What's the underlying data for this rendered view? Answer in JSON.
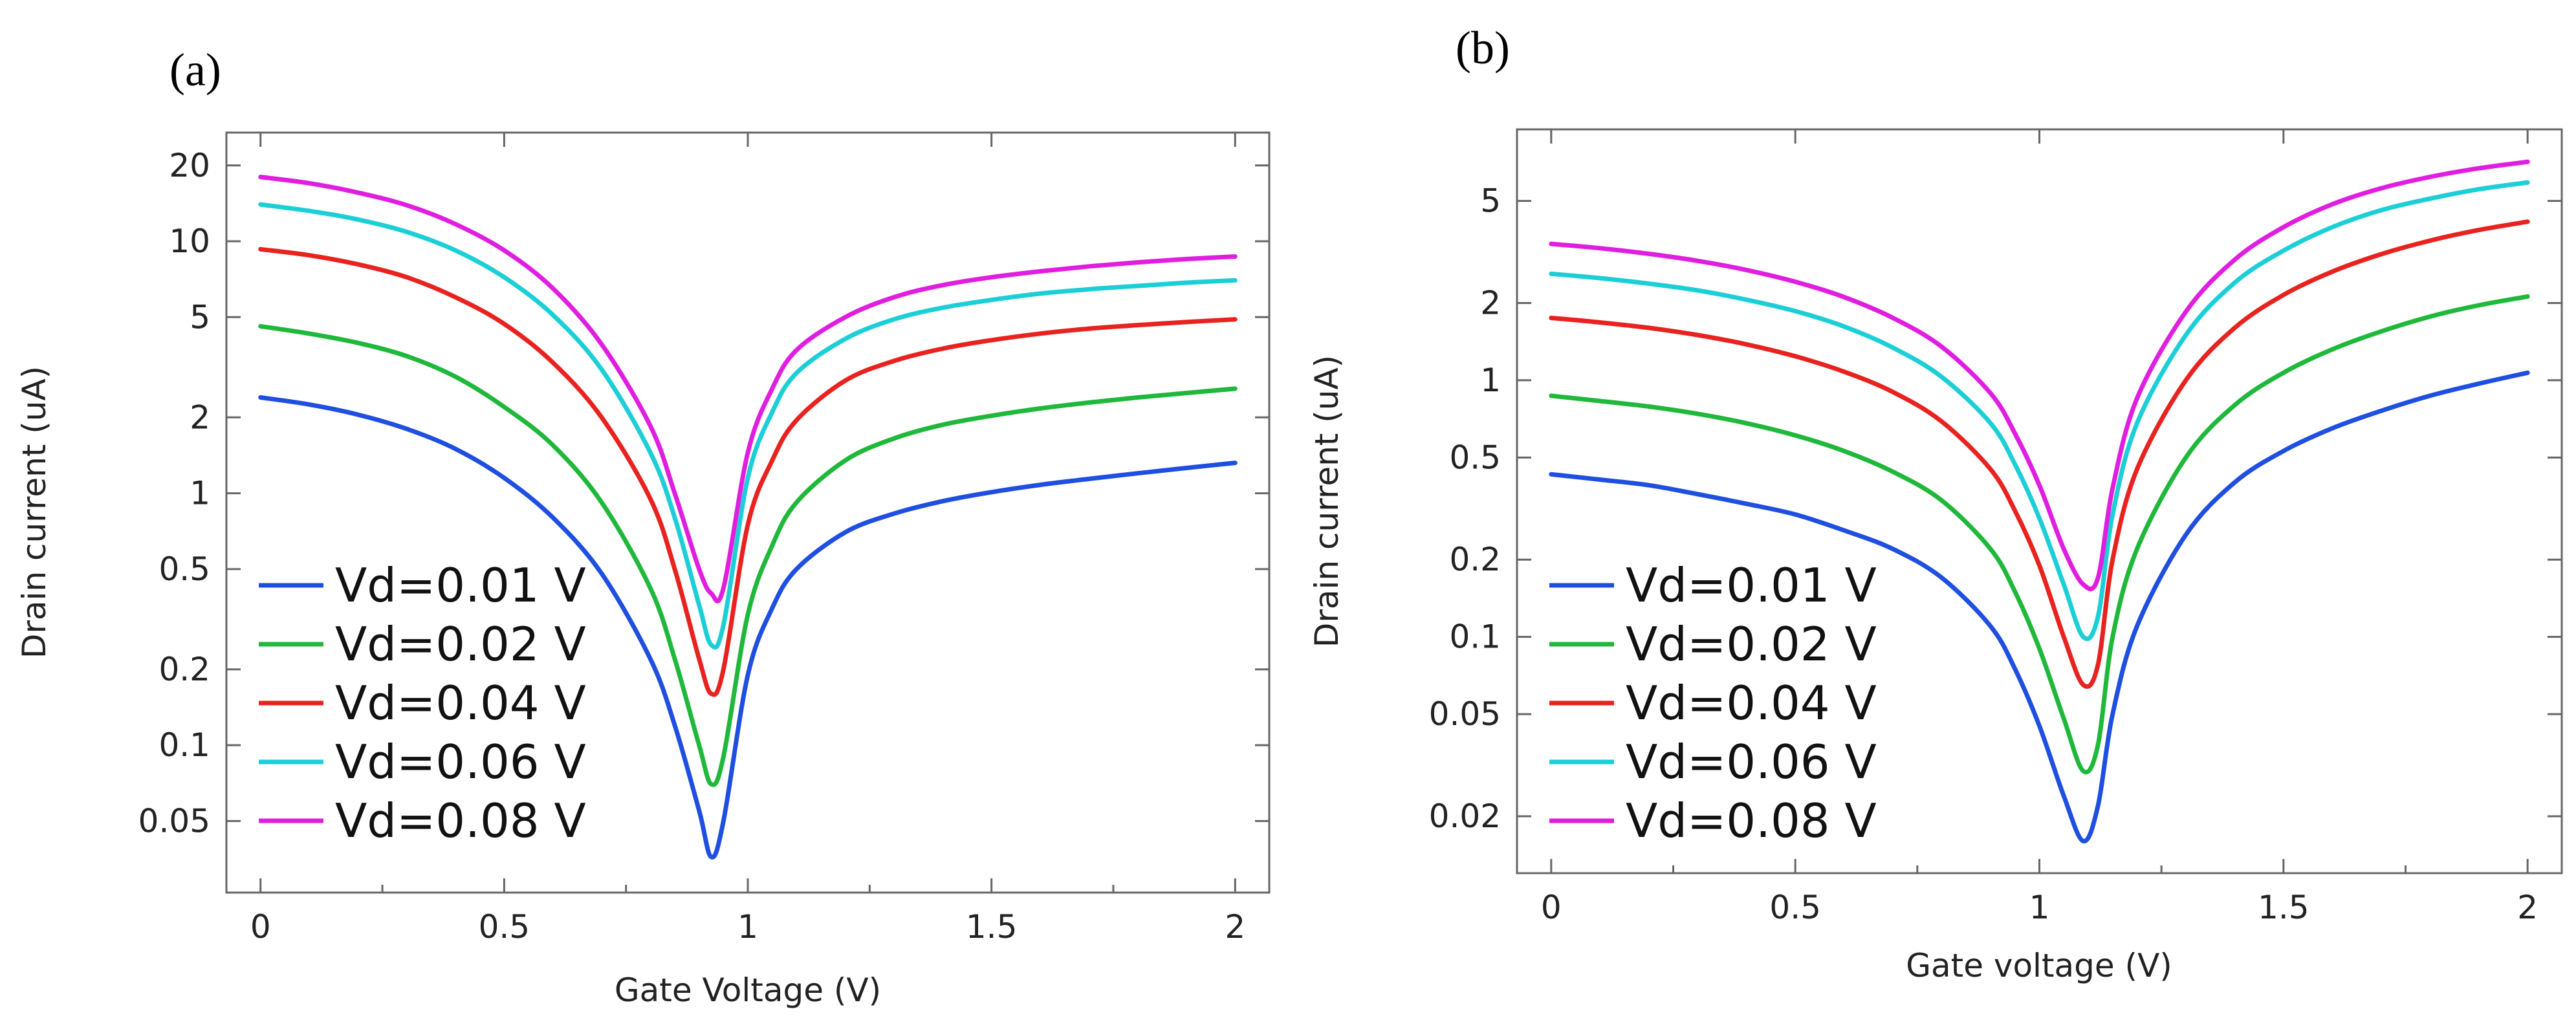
{
  "colors": {
    "Vd=0.01 V": "#1f4fe0",
    "Vd=0.02 V": "#1fb83a",
    "Vd=0.04 V": "#e8231f",
    "Vd=0.06 V": "#1ccfd6",
    "Vd=0.08 V": "#e01ee0"
  },
  "chart_data": [
    {
      "type": "line",
      "panel_label": "(a)",
      "title": "",
      "xlabel": "Gate Voltage (V)",
      "ylabel": "Drain current (uA)",
      "yscale": "log",
      "xlim": [
        -0.07,
        2.07
      ],
      "ylim": [
        0.026,
        27
      ],
      "xticks": [
        0,
        0.5,
        1,
        1.5,
        2
      ],
      "xtick_labels": [
        "0",
        "0.5",
        "1",
        "1.5",
        "2"
      ],
      "yticks": [
        0.05,
        0.1,
        0.2,
        0.5,
        1,
        2,
        5,
        10,
        20
      ],
      "ytick_labels": [
        "0.05",
        "0.1",
        "0.2",
        "0.5",
        "1",
        "2",
        "5",
        "10",
        "20"
      ],
      "grid": false,
      "legend": "bottom-left",
      "x": [
        0,
        0.1,
        0.2,
        0.3,
        0.4,
        0.5,
        0.6,
        0.7,
        0.8,
        0.85,
        0.9,
        0.925,
        0.95,
        1.0,
        1.05,
        1.1,
        1.2,
        1.3,
        1.4,
        1.5,
        1.6,
        1.7,
        1.8,
        1.9,
        2.0
      ],
      "series": [
        {
          "name": "Vd=0.01 V",
          "values": [
            2.4,
            2.25,
            2.05,
            1.8,
            1.5,
            1.15,
            0.8,
            0.48,
            0.22,
            0.12,
            0.055,
            0.036,
            0.05,
            0.19,
            0.35,
            0.5,
            0.7,
            0.83,
            0.93,
            1.01,
            1.08,
            1.14,
            1.2,
            1.26,
            1.32
          ]
        },
        {
          "name": "Vd=0.02 V",
          "values": [
            4.6,
            4.3,
            3.95,
            3.5,
            2.9,
            2.2,
            1.55,
            0.92,
            0.42,
            0.22,
            0.1,
            0.07,
            0.09,
            0.33,
            0.62,
            0.92,
            1.35,
            1.65,
            1.87,
            2.03,
            2.17,
            2.29,
            2.4,
            2.5,
            2.6
          ]
        },
        {
          "name": "Vd=0.04 V",
          "values": [
            9.3,
            8.8,
            8.1,
            7.2,
            6.0,
            4.7,
            3.3,
            2.0,
            0.95,
            0.5,
            0.22,
            0.16,
            0.2,
            0.75,
            1.35,
            1.95,
            2.8,
            3.35,
            3.75,
            4.05,
            4.3,
            4.5,
            4.65,
            4.78,
            4.9
          ]
        },
        {
          "name": "Vd=0.06 V",
          "values": [
            14.0,
            13.2,
            12.2,
            10.9,
            9.2,
            7.2,
            5.1,
            3.1,
            1.45,
            0.8,
            0.36,
            0.25,
            0.3,
            1.15,
            2.1,
            3.0,
            4.1,
            4.9,
            5.45,
            5.85,
            6.2,
            6.45,
            6.65,
            6.85,
            7.0
          ]
        },
        {
          "name": "Vd=0.08 V",
          "values": [
            18.0,
            17.0,
            15.6,
            13.9,
            11.7,
            9.2,
            6.5,
            3.9,
            1.85,
            1.0,
            0.5,
            0.4,
            0.42,
            1.45,
            2.6,
            3.7,
            5.0,
            6.0,
            6.7,
            7.2,
            7.6,
            7.95,
            8.25,
            8.5,
            8.7
          ]
        }
      ]
    },
    {
      "type": "line",
      "panel_label": "(b)",
      "title": "",
      "xlabel": "Gate voltage (V)",
      "ylabel": "Drain current (uA)",
      "yscale": "log",
      "xlim": [
        -0.07,
        2.07
      ],
      "ylim": [
        0.012,
        9.5
      ],
      "xticks": [
        0,
        0.5,
        1,
        1.5,
        2
      ],
      "xtick_labels": [
        "0",
        "0.5",
        "1",
        "1.5",
        "2"
      ],
      "yticks": [
        0.02,
        0.05,
        0.1,
        0.2,
        0.5,
        1,
        2,
        5
      ],
      "ytick_labels": [
        "0.02",
        "0.05",
        "0.1",
        "0.2",
        "0.5",
        "1",
        "2",
        "5"
      ],
      "grid": false,
      "legend": "bottom-left",
      "x": [
        0,
        0.1,
        0.2,
        0.3,
        0.4,
        0.5,
        0.6,
        0.7,
        0.8,
        0.9,
        0.95,
        1.0,
        1.05,
        1.09,
        1.12,
        1.15,
        1.2,
        1.3,
        1.4,
        1.5,
        1.6,
        1.7,
        1.8,
        1.9,
        2.0
      ],
      "series": [
        {
          "name": "Vd=0.01 V",
          "values": [
            0.43,
            0.41,
            0.39,
            0.36,
            0.33,
            0.3,
            0.26,
            0.22,
            0.17,
            0.11,
            0.075,
            0.045,
            0.024,
            0.016,
            0.022,
            0.05,
            0.11,
            0.25,
            0.4,
            0.53,
            0.65,
            0.76,
            0.87,
            0.97,
            1.07
          ]
        },
        {
          "name": "Vd=0.02 V",
          "values": [
            0.87,
            0.83,
            0.79,
            0.74,
            0.68,
            0.61,
            0.53,
            0.44,
            0.34,
            0.22,
            0.15,
            0.09,
            0.048,
            0.03,
            0.038,
            0.1,
            0.22,
            0.5,
            0.8,
            1.07,
            1.32,
            1.55,
            1.77,
            1.96,
            2.12
          ]
        },
        {
          "name": "Vd=0.04 V",
          "values": [
            1.75,
            1.68,
            1.6,
            1.5,
            1.38,
            1.24,
            1.08,
            0.9,
            0.69,
            0.45,
            0.31,
            0.19,
            0.1,
            0.065,
            0.078,
            0.2,
            0.45,
            1.0,
            1.6,
            2.15,
            2.65,
            3.1,
            3.5,
            3.85,
            4.15
          ]
        },
        {
          "name": "Vd=0.06 V",
          "values": [
            2.6,
            2.5,
            2.38,
            2.24,
            2.06,
            1.86,
            1.62,
            1.34,
            1.03,
            0.68,
            0.47,
            0.29,
            0.16,
            0.1,
            0.12,
            0.3,
            0.68,
            1.5,
            2.4,
            3.2,
            3.95,
            4.6,
            5.1,
            5.55,
            5.9
          ]
        },
        {
          "name": "Vd=0.08 V",
          "values": [
            3.4,
            3.27,
            3.11,
            2.92,
            2.69,
            2.42,
            2.11,
            1.75,
            1.35,
            0.89,
            0.62,
            0.39,
            0.22,
            0.16,
            0.17,
            0.38,
            0.85,
            1.85,
            2.95,
            3.95,
            4.85,
            5.6,
            6.2,
            6.7,
            7.1
          ]
        }
      ]
    }
  ]
}
